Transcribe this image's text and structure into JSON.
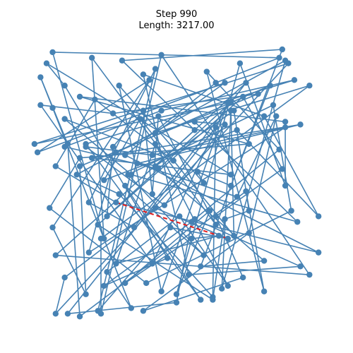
{
  "chart_data": {
    "type": "line",
    "title": "Step 990",
    "subtitle": "Length: 3217.00",
    "xlim": [
      0,
      100
    ],
    "ylim": [
      0,
      100
    ],
    "grid": false,
    "axes_visible": false,
    "route_color": "#4682b4",
    "highlight_color": "#e11d1d",
    "points": [
      [
        30,
        45
      ],
      [
        10,
        58
      ],
      [
        23,
        82
      ],
      [
        49,
        60
      ],
      [
        13,
        75
      ],
      [
        35,
        55
      ],
      [
        90,
        38
      ],
      [
        56,
        74
      ],
      [
        66,
        73
      ],
      [
        46,
        44
      ],
      [
        20,
        65
      ],
      [
        42,
        62
      ],
      [
        86,
        72
      ],
      [
        21,
        27
      ],
      [
        30,
        63
      ],
      [
        81,
        87
      ],
      [
        68,
        51
      ],
      [
        57,
        56
      ],
      [
        59,
        52
      ],
      [
        31,
        87
      ],
      [
        45,
        13
      ],
      [
        67,
        81
      ],
      [
        42,
        23
      ],
      [
        5,
        80
      ],
      [
        29,
        77
      ],
      [
        77,
        84
      ],
      [
        18,
        58
      ],
      [
        20,
        12
      ],
      [
        9,
        36
      ],
      [
        41,
        89
      ],
      [
        4,
        63
      ],
      [
        66,
        88
      ],
      [
        43,
        70
      ],
      [
        94,
        87
      ],
      [
        25,
        32
      ],
      [
        25,
        5
      ],
      [
        45,
        98
      ],
      [
        94,
        19
      ],
      [
        10,
        26
      ],
      [
        56,
        71
      ],
      [
        32,
        96
      ],
      [
        85,
        100
      ],
      [
        58,
        22
      ],
      [
        79,
        24
      ],
      [
        44,
        57
      ],
      [
        13,
        65
      ],
      [
        45,
        78
      ],
      [
        89,
        89
      ],
      [
        20,
        66
      ],
      [
        58,
        10
      ],
      [
        33,
        51
      ],
      [
        59,
        26
      ],
      [
        34,
        55
      ],
      [
        82,
        80
      ],
      [
        88,
        42
      ],
      [
        40,
        16
      ],
      [
        8,
        43
      ],
      [
        18,
        61
      ],
      [
        74,
        66
      ],
      [
        18,
        83
      ],
      [
        86,
        74
      ],
      [
        86,
        51
      ],
      [
        71,
        95
      ],
      [
        50,
        12
      ],
      [
        61,
        42
      ],
      [
        33,
        16
      ],
      [
        55,
        32
      ],
      [
        64,
        33
      ],
      [
        30,
        23
      ],
      [
        43,
        66
      ],
      [
        67,
        15
      ],
      [
        51,
        40
      ],
      [
        27,
        20
      ],
      [
        35,
        7
      ],
      [
        9,
        79
      ],
      [
        5,
        90
      ],
      [
        14,
        66
      ],
      [
        18,
        4
      ],
      [
        73,
        49
      ],
      [
        79,
        13
      ],
      [
        60,
        92
      ],
      [
        84,
        64
      ],
      [
        56,
        39
      ],
      [
        91,
        22
      ],
      [
        54,
        19
      ],
      [
        39,
        91
      ],
      [
        79,
        76
      ],
      [
        97,
        40
      ],
      [
        70,
        71
      ],
      [
        26,
        53
      ],
      [
        38,
        75
      ],
      [
        69,
        33
      ],
      [
        68,
        78
      ],
      [
        65,
        14
      ],
      [
        86,
        96
      ],
      [
        17,
        55
      ],
      [
        31,
        48
      ],
      [
        62,
        11
      ],
      [
        63,
        72
      ],
      [
        14,
        5
      ],
      [
        50,
        9
      ],
      [
        55,
        38
      ],
      [
        26,
        15
      ],
      [
        47,
        25
      ],
      [
        13,
        87
      ],
      [
        7,
        95
      ],
      [
        68,
        55
      ],
      [
        22,
        61
      ],
      [
        91,
        73
      ],
      [
        37,
        59
      ],
      [
        70,
        47
      ],
      [
        83,
        76
      ],
      [
        74,
        34
      ],
      [
        39,
        6
      ],
      [
        72,
        18
      ],
      [
        63,
        40
      ],
      [
        85,
        57
      ],
      [
        72,
        83
      ],
      [
        24,
        37
      ],
      [
        62,
        10
      ],
      [
        66,
        39
      ],
      [
        74,
        42
      ],
      [
        69,
        78
      ],
      [
        43,
        58
      ],
      [
        73,
        88
      ],
      [
        36,
        36
      ],
      [
        21,
        45
      ],
      [
        43,
        93
      ],
      [
        24,
        6
      ],
      [
        48,
        36
      ],
      [
        67,
        32
      ],
      [
        43,
        43
      ],
      [
        13,
        18
      ],
      [
        10,
        5
      ],
      [
        87,
        95
      ],
      [
        3,
        66
      ],
      [
        68,
        81
      ],
      [
        27,
        40
      ],
      [
        29,
        65
      ],
      [
        39,
        78
      ],
      [
        42,
        48
      ],
      [
        44,
        76
      ],
      [
        63,
        37
      ],
      [
        22,
        97
      ],
      [
        26,
        32
      ],
      [
        9,
        99
      ],
      [
        84,
        97
      ],
      [
        63,
        88
      ],
      [
        33,
        62
      ],
      [
        97,
        27
      ]
    ],
    "highlight_segment": [
      [
        30,
        45
      ],
      [
        67,
        32
      ]
    ]
  }
}
